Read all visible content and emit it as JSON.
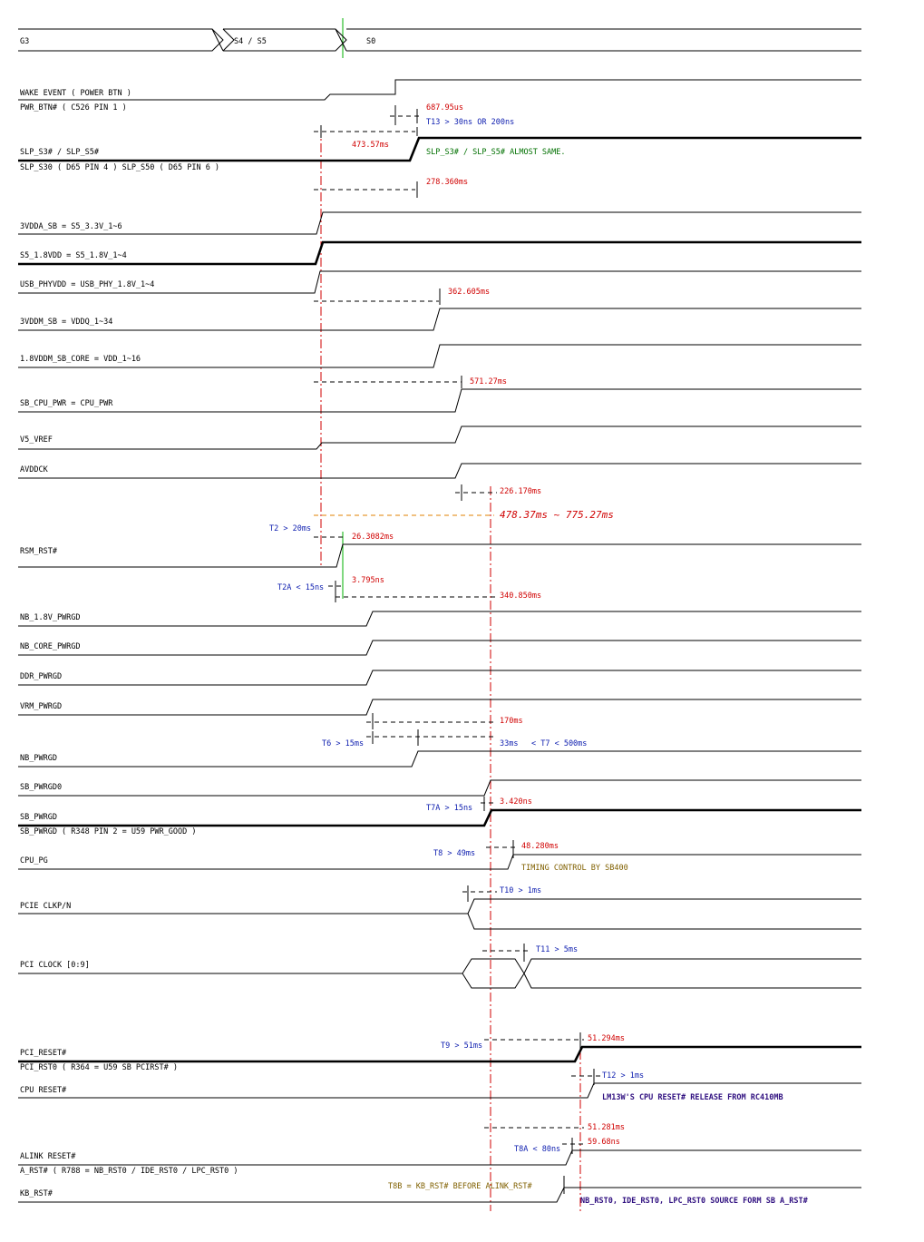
{
  "states": [
    "G3",
    "S4 / S5",
    "S0"
  ],
  "signals": {
    "wake": "WAKE EVENT ( POWER BTN )",
    "pwr_btn": "PWR_BTN# ( C526 PIN 1 )",
    "slp": "SLP_S3# / SLP_S5#",
    "slp_pins": "SLP_S30 ( D65 PIN 4 ) SLP_S50 ( D65 PIN 6 )",
    "vdda": "3VDDA_SB = S5_3.3V_1~6",
    "s5": "S5_1.8VDD = S5_1.8V_1~4",
    "usb": "USB_PHYVDD = USB_PHY_1.8V_1~4",
    "vddm": "3VDDM_SB = VDDQ_1~34",
    "core": "1.8VDDM_SB_CORE = VDD_1~16",
    "cpu_pwr": "SB_CPU_PWR = CPU_PWR",
    "vref": "V5_VREF",
    "avddck": "AVDDCK",
    "rsm": "RSM_RST#",
    "nb18": "NB_1.8V_PWRGD",
    "nbcore": "NB_CORE_PWRGD",
    "ddr": "DDR_PWRGD",
    "vrm": "VRM_PWRGD",
    "nbpwrgd": "NB_PWRGD",
    "sbpwrgd0": "SB_PWRGD0",
    "sbpwrgd": "SB_PWRGD",
    "sbpwrgd_pin": "SB_PWRGD ( R348 PIN 2 = U59 PWR_GOOD )",
    "cpupg": "CPU_PG",
    "pcie": "PCIE CLKP/N",
    "pciclk": "PCI CLOCK [0:9]",
    "pcireset": "PCI_RESET#",
    "pcirst_pin": "PCI_RST0 ( R364 = U59 SB PCIRST# )",
    "cpureset": "CPU RESET#",
    "alink": "ALINK RESET#",
    "arst": "A_RST# ( R788 = NB_RST0 / IDE_RST0 / LPC_RST0 )",
    "kbrst": "KB_RST#"
  },
  "timing": {
    "t687": "687.95us",
    "t13": "T13 > 30ns OR 200ns",
    "t473": "473.57ms",
    "slp_note": "SLP_S3# / SLP_S5# ALMOST SAME.",
    "t278": "278.360ms",
    "t362": "362.605ms",
    "t571": "571.27ms",
    "t226": "226.170ms",
    "total": "478.37ms ~ 775.27ms",
    "t2": "T2 > 20ms",
    "t26": "26.3082ms",
    "t2a": "T2A < 15ns",
    "t3795": "3.795ns",
    "t340": "340.850ms",
    "t170": "170ms",
    "t6": "T6 > 15ms",
    "t33": "33ms",
    "t7": "< T7 < 500ms",
    "t7a": "T7A > 15ns",
    "t3420": "3.420ns",
    "t8": "T8 > 49ms",
    "t48": "48.280ms",
    "timing_note": "TIMING CONTROL BY SB400",
    "t10": "T10 > 1ms",
    "t11": "T11 > 5ms",
    "t9": "T9 > 51ms",
    "t51a": "51.294ms",
    "t12": "T12 > 1ms",
    "cpu_note": "LM13W'S CPU RESET# RELEASE FROM RC410MB",
    "t51b": "51.281ms",
    "t8a": "T8A < 80ns",
    "t59": "59.68ns",
    "t8b": "T8B = KB_RST# BEFORE ALINK_RST#",
    "rst_note": "NB_RST0, IDE_RST0, LPC_RST0 SOURCE FORM SB A_RST#"
  }
}
